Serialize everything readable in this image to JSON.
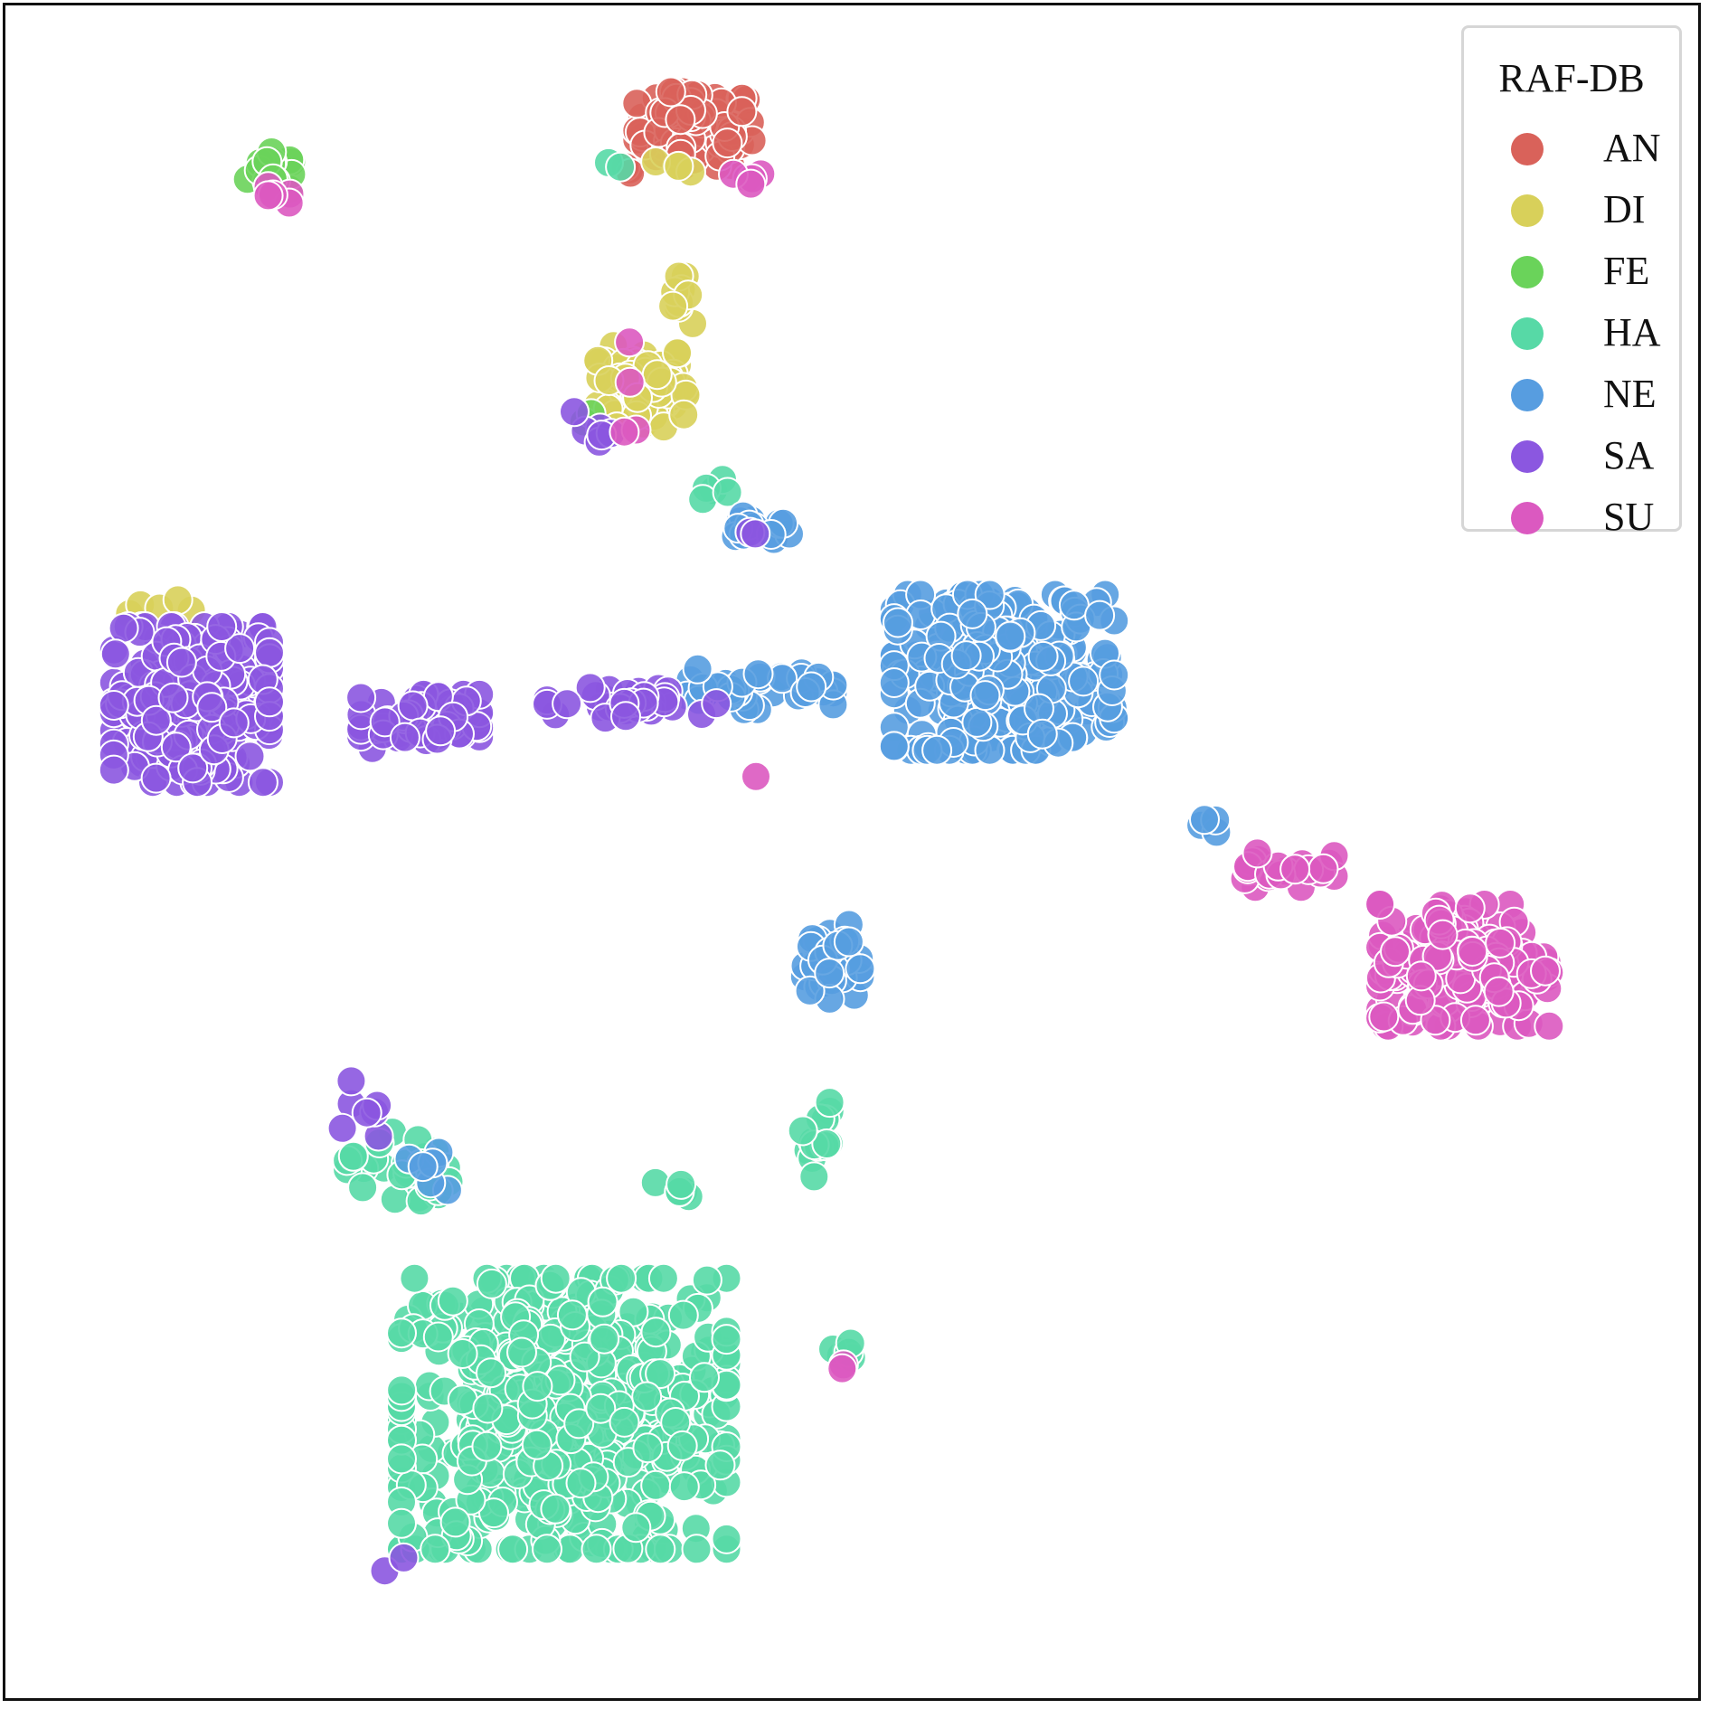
{
  "chart_data": {
    "type": "scatter",
    "title": "",
    "xlabel": "",
    "ylabel": "",
    "xlim": [
      0,
      100
    ],
    "ylim": [
      0,
      100
    ],
    "grid": false,
    "axes_visible": false,
    "legend": {
      "title": "RAF-DB",
      "position": "top-right"
    },
    "series": [
      {
        "name": "AN",
        "color": "#d9625a",
        "clusters": [
          {
            "center": [
              40.7,
              92.7
            ],
            "spread": [
              3.4,
              2.2
            ],
            "count": 95
          },
          {
            "center": [
              37.0,
              90.4
            ],
            "spread": [
              0.4,
              0.5
            ],
            "count": 3
          }
        ]
      },
      {
        "name": "DI",
        "color": "#d8d05a",
        "clusters": [
          {
            "center": [
              37.6,
              77.5
            ],
            "spread": [
              2.6,
              2.4
            ],
            "count": 95
          },
          {
            "center": [
              39.8,
              82.6
            ],
            "spread": [
              0.8,
              1.4
            ],
            "count": 10
          },
          {
            "center": [
              39.9,
              90.5
            ],
            "spread": [
              1.5,
              0.4
            ],
            "count": 4
          },
          {
            "center": [
              9.0,
              64.5
            ],
            "spread": [
              2.0,
              1.0
            ],
            "count": 5
          }
        ]
      },
      {
        "name": "FE",
        "color": "#6ad35a",
        "clusters": [
          {
            "center": [
              15.6,
              90.2
            ],
            "spread": [
              1.3,
              1.2
            ],
            "count": 24
          },
          {
            "center": [
              34.3,
              75.6
            ],
            "spread": [
              0.3,
              0.3
            ],
            "count": 2
          }
        ]
      },
      {
        "name": "HA",
        "color": "#57d9a6",
        "clusters": [
          {
            "center": [
              33.0,
              16.8
            ],
            "spread": [
              9.6,
              8.0
            ],
            "count": 560
          },
          {
            "center": [
              23.2,
              31.3
            ],
            "spread": [
              3.0,
              2.2
            ],
            "count": 28
          },
          {
            "center": [
              48.0,
              33.0
            ],
            "spread": [
              0.9,
              2.2
            ],
            "count": 14
          },
          {
            "center": [
              39.6,
              30.0
            ],
            "spread": [
              1.2,
              0.6
            ],
            "count": 6
          },
          {
            "center": [
              49.5,
              20.5
            ],
            "spread": [
              1.6,
              0.8
            ],
            "count": 6
          },
          {
            "center": [
              41.9,
              70.8
            ],
            "spread": [
              1.0,
              1.2
            ],
            "count": 5
          },
          {
            "center": [
              36.0,
              90.5
            ],
            "spread": [
              0.6,
              0.4
            ],
            "count": 2
          }
        ]
      },
      {
        "name": "NE",
        "color": "#579de0",
        "clusters": [
          {
            "center": [
              59.0,
              60.6
            ],
            "spread": [
              6.5,
              4.6
            ],
            "count": 300
          },
          {
            "center": [
              43.9,
              59.6
            ],
            "spread": [
              5.0,
              1.2
            ],
            "count": 40
          },
          {
            "center": [
              48.7,
              43.5
            ],
            "spread": [
              1.8,
              2.2
            ],
            "count": 35
          },
          {
            "center": [
              44.3,
              69.2
            ],
            "spread": [
              2.2,
              1.1
            ],
            "count": 14
          },
          {
            "center": [
              25.5,
              32.0
            ],
            "spread": [
              3.0,
              2.0
            ],
            "count": 6
          },
          {
            "center": [
              71.0,
              51.5
            ],
            "spread": [
              0.6,
              0.6
            ],
            "count": 4
          }
        ]
      },
      {
        "name": "SA",
        "color": "#8b57e0",
        "clusters": [
          {
            "center": [
              11.0,
              58.7
            ],
            "spread": [
              4.6,
              4.6
            ],
            "count": 260
          },
          {
            "center": [
              24.5,
              57.7
            ],
            "spread": [
              3.5,
              1.6
            ],
            "count": 65
          },
          {
            "center": [
              37.0,
              58.8
            ],
            "spread": [
              5.0,
              0.9
            ],
            "count": 35
          },
          {
            "center": [
              34.8,
              74.8
            ],
            "spread": [
              1.2,
              1.2
            ],
            "count": 6
          },
          {
            "center": [
              43.7,
              68.9
            ],
            "spread": [
              0.6,
              0.5
            ],
            "count": 2
          },
          {
            "center": [
              21.0,
              35.0
            ],
            "spread": [
              1.4,
              1.8
            ],
            "count": 7
          },
          {
            "center": [
              22.5,
              8.5
            ],
            "spread": [
              1.4,
              1.0
            ],
            "count": 2
          }
        ]
      },
      {
        "name": "SU",
        "color": "#db59c0",
        "clusters": [
          {
            "center": [
              86.2,
              43.3
            ],
            "spread": [
              5.0,
              3.6
            ],
            "count": 210
          },
          {
            "center": [
              75.5,
              49.1
            ],
            "spread": [
              3.0,
              1.2
            ],
            "count": 26
          },
          {
            "center": [
              15.8,
              88.8
            ],
            "spread": [
              1.0,
              0.5
            ],
            "count": 5
          },
          {
            "center": [
              44.0,
              89.9
            ],
            "spread": [
              1.0,
              0.6
            ],
            "count": 5
          },
          {
            "center": [
              37.3,
              77.8
            ],
            "spread": [
              2.2,
              3.0
            ],
            "count": 4
          },
          {
            "center": [
              49.5,
              19.7
            ],
            "spread": [
              0.3,
              0.3
            ],
            "count": 2
          },
          {
            "center": [
              44.4,
              54.5
            ],
            "spread": [
              0.2,
              0.2
            ],
            "count": 1
          }
        ]
      }
    ]
  }
}
